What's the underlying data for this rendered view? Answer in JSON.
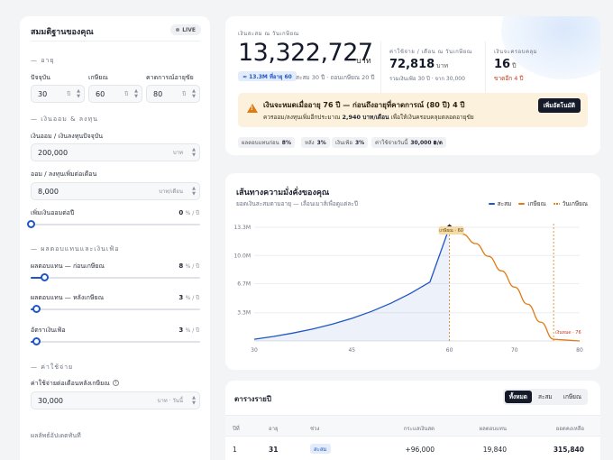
{
  "sidebar": {
    "title": "สมมติฐานของคุณ",
    "live_label": "LIVE",
    "sections": {
      "age": "— อายุ",
      "savings": "— เงินออม & ลงทุน",
      "returns": "— ผลตอบแทนและเงินเฟ้อ",
      "expenses": "— ค่าใช้จ่าย"
    },
    "current_age": {
      "label": "ปัจจุบัน",
      "value": "30",
      "unit": "ปี"
    },
    "retire_age": {
      "label": "เกษียณ",
      "value": "60",
      "unit": "ปี"
    },
    "life_exp": {
      "label": "คาดการณ์อายุขัย",
      "value": "80",
      "unit": "ปี"
    },
    "current_savings": {
      "label": "เงินออม / เงินลงทุนปัจจุบัน",
      "value": "200,000",
      "unit": "บาท"
    },
    "monthly_saving": {
      "label": "ออม / ลงทุนเพิ่มต่อเดือน",
      "value": "8,000",
      "unit": "บาท/เดือน"
    },
    "saving_growth": {
      "label": "เพิ่มเงินออมต่อปี",
      "value": "0",
      "unit": "% / ปี",
      "level": 0
    },
    "pre_return": {
      "label": "ผลตอบแทน — ก่อนเกษียณ",
      "value": "8",
      "unit": "% / ปี",
      "level": 0.08
    },
    "post_return": {
      "label": "ผลตอบแทน — หลังเกษียณ",
      "value": "3",
      "unit": "% / ปี",
      "level": 0.03
    },
    "inflation": {
      "label": "อัตราเงินเฟ้อ",
      "value": "3",
      "unit": "% / ปี",
      "level": 0.03
    },
    "monthly_expense": {
      "label": "ค่าใช้จ่ายต่อเดือนหลังเกษียณ",
      "value": "30,000",
      "unit": "บาท · วันนี้"
    },
    "footnote": "ผลลัพธ์อัปเดตทันที"
  },
  "summary": {
    "caption": "เงินสะสม ณ วันเกษียณ",
    "amount": "13,322,727",
    "amount_unit": "บาท",
    "badge": "≈ 13.3M ที่อายุ 60",
    "amount_sub": "สะสม 30 ปี · ถอนเกษียณ 20 ปี",
    "expense_caption": "ค่าใช้จ่าย / เดือน ณ วันเกษียณ",
    "expense_value": "72,818",
    "expense_unit": "บาท",
    "expense_sub": "รวมเงินเฟ้อ 30 ปี · จาก 30,000",
    "cover_caption": "เงินจะครอบคลุม",
    "cover_value": "16",
    "cover_unit": "ปี",
    "cover_sub": "ขาดอีก 4 ปี",
    "warn_title": "เงินจะหมดเมื่ออายุ 76 ปี — ก่อนถึงอายุที่คาดการณ์ (80 ปี) 4 ปี",
    "warn_sub_pre": "ควรออม/ลงทุนเพิ่มอีกประมาณ",
    "warn_sub_amount": "2,940 บาท/เดือน",
    "warn_sub_post": "เพื่อให้เงินครอบคลุมตลอดอายุขัย",
    "warn_button": "เพิ่มอัตโนมัติ",
    "chips": [
      {
        "label": "ผลตอบแทนก่อน",
        "value": "8%"
      },
      {
        "label": "หลัง",
        "value": "3%"
      },
      {
        "label": "เงินเฟ้อ",
        "value": "3%"
      },
      {
        "label": "ค่าใช้จ่ายวันนี้",
        "value": "30,000 ฿/ด"
      }
    ]
  },
  "chart": {
    "title": "เส้นทางความมั่งคั่งของคุณ",
    "subtitle": "ยอดเงินสะสมตามอายุ — เลื่อนเมาส์เพื่อดูแต่ละปี",
    "legend": {
      "accumulate": "สะสม",
      "retire": "เกษียณ",
      "retire_age": "วันเกษียณ"
    },
    "colors": {
      "accumulate": "#1f56c4",
      "retire": "#e07a12",
      "marker": "#e07a12"
    },
    "peak_label": "เกษียณ · 60",
    "end_label": "เงินหมด · 76"
  },
  "chart_data": {
    "type": "line",
    "x_ticks": [
      30,
      45,
      60,
      70,
      80
    ],
    "y_ticks": [
      "3.3M",
      "6.7M",
      "10.0M",
      "13.3M"
    ],
    "xlim": [
      30,
      80
    ],
    "ylim": [
      0,
      13.3
    ],
    "series": [
      {
        "name": "สะสม",
        "points": [
          [
            30,
            0.2
          ],
          [
            33,
            0.53
          ],
          [
            36,
            0.93
          ],
          [
            39,
            1.4
          ],
          [
            42,
            1.97
          ],
          [
            45,
            2.64
          ],
          [
            48,
            3.45
          ],
          [
            51,
            4.41
          ],
          [
            54,
            5.56
          ],
          [
            57,
            6.9
          ],
          [
            60,
            13.32
          ]
        ]
      },
      {
        "name": "เกษียณ",
        "points": [
          [
            60,
            13.32
          ],
          [
            62,
            12.5
          ],
          [
            64,
            11.4
          ],
          [
            66,
            9.9
          ],
          [
            68,
            8.2
          ],
          [
            70,
            6.3
          ],
          [
            72,
            4.3
          ],
          [
            74,
            2.2
          ],
          [
            76,
            0.2
          ],
          [
            80,
            0
          ]
        ]
      }
    ],
    "retire_age": 60,
    "depletion_age": 76
  },
  "table": {
    "title": "ตารางรายปี",
    "filters": [
      "ทั้งหมด",
      "สะสม",
      "เกษียณ"
    ],
    "columns": [
      "ปีที่",
      "อายุ",
      "ช่วง",
      "กระแสเงินสด",
      "ผลตอบแทน",
      "ยอดคงเหลือ"
    ],
    "rows": [
      {
        "year": "1",
        "age": "31",
        "phase": "สะสม",
        "cashflow": "+96,000",
        "return": "19,840",
        "balance": "315,840"
      }
    ]
  }
}
